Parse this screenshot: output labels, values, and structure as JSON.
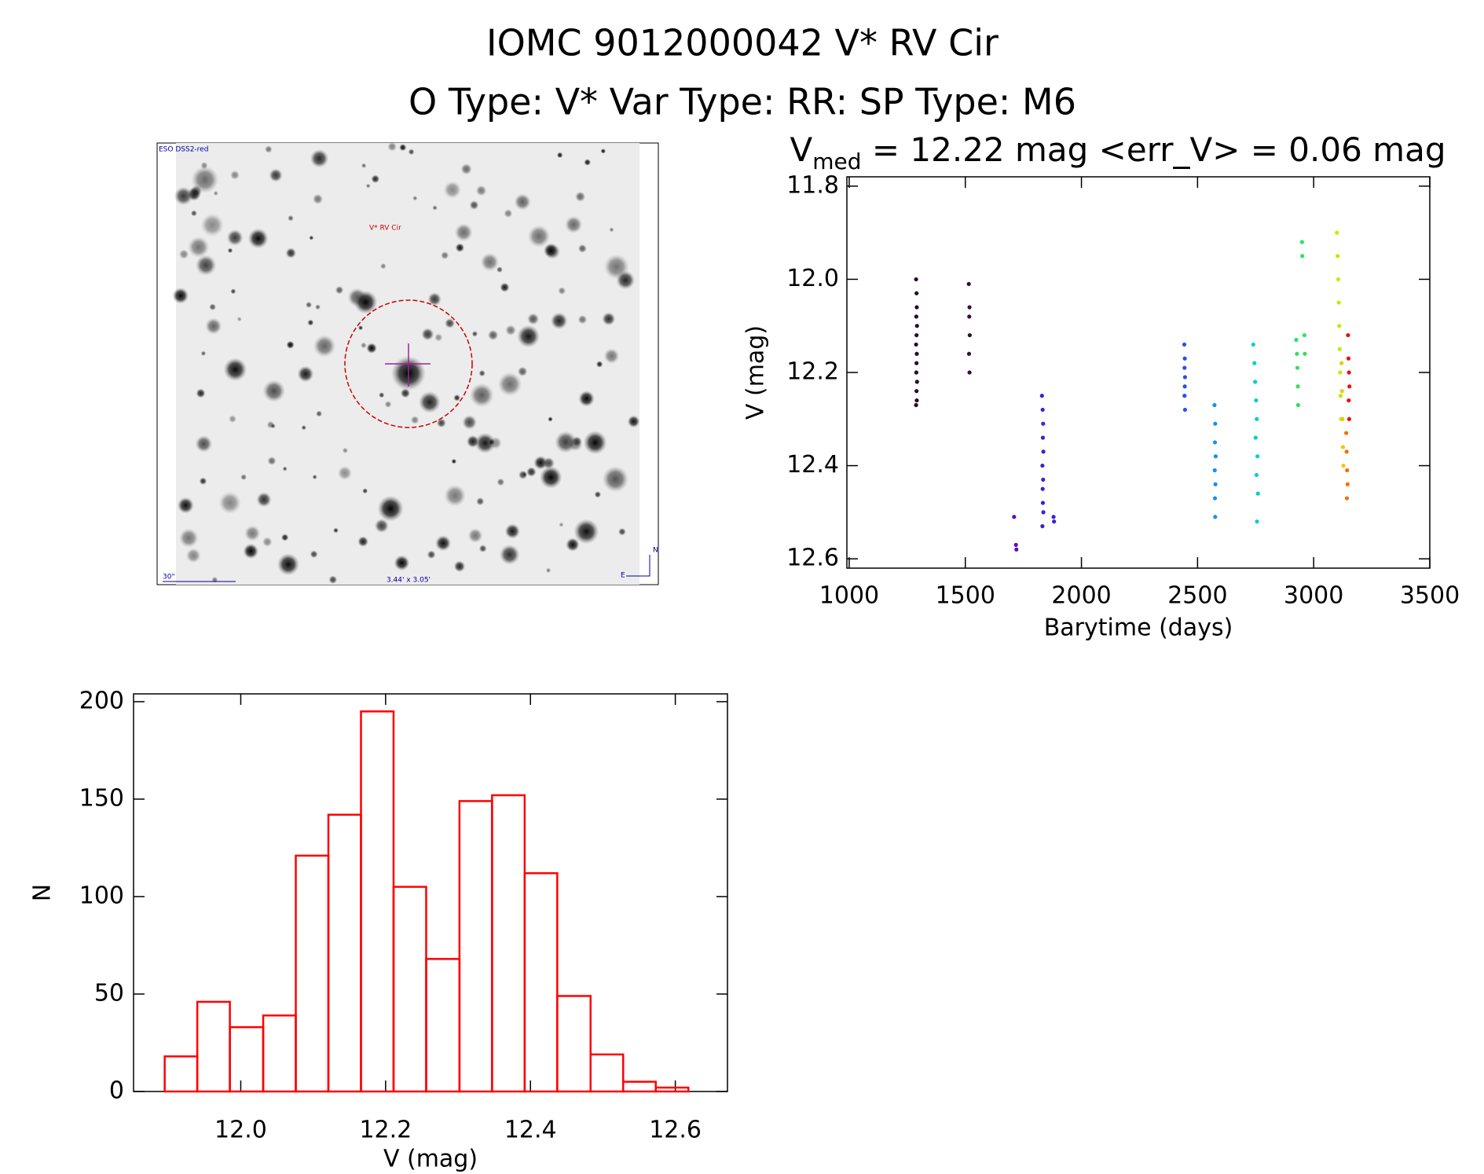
{
  "title": "IOMC 9012000042    V* RV Cir",
  "subtitle": "O Type: V*  Var Type: RR:  SP Type: M6",
  "image": {
    "survey": "ESO DSS2-red",
    "target": "V* RV Cir",
    "scale": "30\"",
    "size": "3.44' x 3.05'",
    "north": "N",
    "east": "E"
  },
  "chart_data": [
    {
      "type": "scatter",
      "title": {
        "main": "V",
        "sub": "med",
        "rest": " = 12.22 mag <err_V> = 0.06 mag"
      },
      "x_label": "Barytime (days)",
      "y_label": "V (mag)",
      "xlim": [
        990,
        3500
      ],
      "xticks": [
        1000,
        1500,
        2000,
        2500,
        3000,
        3500
      ],
      "ylim": [
        12.62,
        11.78
      ],
      "yticks": [
        11.8,
        {
          "value": 12,
          "label": "12.0"
        },
        12.2,
        12.4,
        12.6
      ],
      "series": [
        {
          "color": "#2a0a2e",
          "x": [
            1288,
            1290,
            1291,
            1289,
            1292,
            1290,
            1288,
            1291,
            1290,
            1289,
            1292,
            1290,
            1291,
            1288
          ],
          "values": [
            12.0,
            12.03,
            12.06,
            12.08,
            12.1,
            12.12,
            12.14,
            12.16,
            12.18,
            12.2,
            12.22,
            12.24,
            12.26,
            12.27
          ]
        },
        {
          "color": "#3a0a40",
          "x": [
            1515,
            1518,
            1517,
            1519,
            1516,
            1518
          ],
          "values": [
            12.01,
            12.06,
            12.08,
            12.12,
            12.16,
            12.2
          ]
        },
        {
          "color": "#6010b0",
          "x": [
            1710,
            1718,
            1720
          ],
          "values": [
            12.51,
            12.57,
            12.58
          ]
        },
        {
          "color": "#4020d0",
          "x": [
            1830,
            1833,
            1835,
            1834,
            1836,
            1832,
            1835,
            1833,
            1834,
            1836,
            1832,
            1880,
            1882
          ],
          "values": [
            12.25,
            12.28,
            12.31,
            12.34,
            12.37,
            12.4,
            12.43,
            12.45,
            12.48,
            12.5,
            12.53,
            12.51,
            12.52
          ]
        },
        {
          "color": "#2850e8",
          "x": [
            2443,
            2445,
            2444,
            2446,
            2445,
            2444,
            2446
          ],
          "values": [
            12.14,
            12.17,
            12.19,
            12.21,
            12.23,
            12.25,
            12.28
          ]
        },
        {
          "color": "#1890f0",
          "x": [
            2573,
            2576,
            2575,
            2578,
            2574,
            2577,
            2575,
            2576
          ],
          "values": [
            12.27,
            12.31,
            12.35,
            12.38,
            12.41,
            12.44,
            12.47,
            12.51
          ]
        },
        {
          "color": "#00d0d0",
          "x": [
            2740,
            2745,
            2748,
            2752,
            2755,
            2750,
            2758,
            2754,
            2760,
            2756
          ],
          "values": [
            12.14,
            12.18,
            12.22,
            12.26,
            12.3,
            12.34,
            12.38,
            12.42,
            12.46,
            12.52
          ]
        },
        {
          "color": "#30e060",
          "x": [
            2925,
            2928,
            2930,
            2932,
            2933,
            2950,
            2951,
            2960,
            2962
          ],
          "values": [
            12.13,
            12.16,
            12.19,
            12.23,
            12.27,
            11.92,
            11.95,
            12.12,
            12.16
          ]
        },
        {
          "color": "#b8f000",
          "x": [
            3100,
            3103,
            3106,
            3108,
            3110,
            3112,
            3114,
            3116,
            3118
          ],
          "values": [
            11.9,
            11.95,
            12.0,
            12.05,
            12.1,
            12.15,
            12.2,
            12.25,
            12.3
          ]
        },
        {
          "color": "#f0c800",
          "x": [
            3120,
            3122,
            3124,
            3126,
            3128
          ],
          "values": [
            12.18,
            12.24,
            12.3,
            12.36,
            12.4
          ]
        },
        {
          "color": "#f07010",
          "x": [
            3140,
            3142,
            3144,
            3146,
            3143
          ],
          "values": [
            12.33,
            12.37,
            12.41,
            12.44,
            12.47
          ]
        },
        {
          "color": "#e81010",
          "x": [
            3148,
            3150,
            3152,
            3154,
            3151,
            3153
          ],
          "values": [
            12.12,
            12.17,
            12.2,
            12.23,
            12.26,
            12.3
          ]
        }
      ]
    },
    {
      "type": "histogram",
      "x_label": "V (mag)",
      "y_label": "N",
      "color": "#ff0000",
      "bins": [
        11.895,
        11.94,
        11.985,
        12.031,
        12.076,
        12.121,
        12.166,
        12.211,
        12.256,
        12.302,
        12.347,
        12.392,
        12.437,
        12.483,
        12.528,
        12.573,
        12.618
      ],
      "values": [
        18,
        46,
        33,
        39,
        121,
        142,
        195,
        105,
        68,
        149,
        152,
        112,
        49,
        19,
        5,
        2
      ],
      "xlim": [
        11.852,
        12.672
      ],
      "xticks": [
        {
          "value": 12,
          "label": "12.0"
        },
        12.2,
        12.4,
        12.6
      ],
      "ylim": [
        0,
        204
      ],
      "yticks": [
        0,
        50,
        100,
        150,
        200
      ]
    }
  ]
}
